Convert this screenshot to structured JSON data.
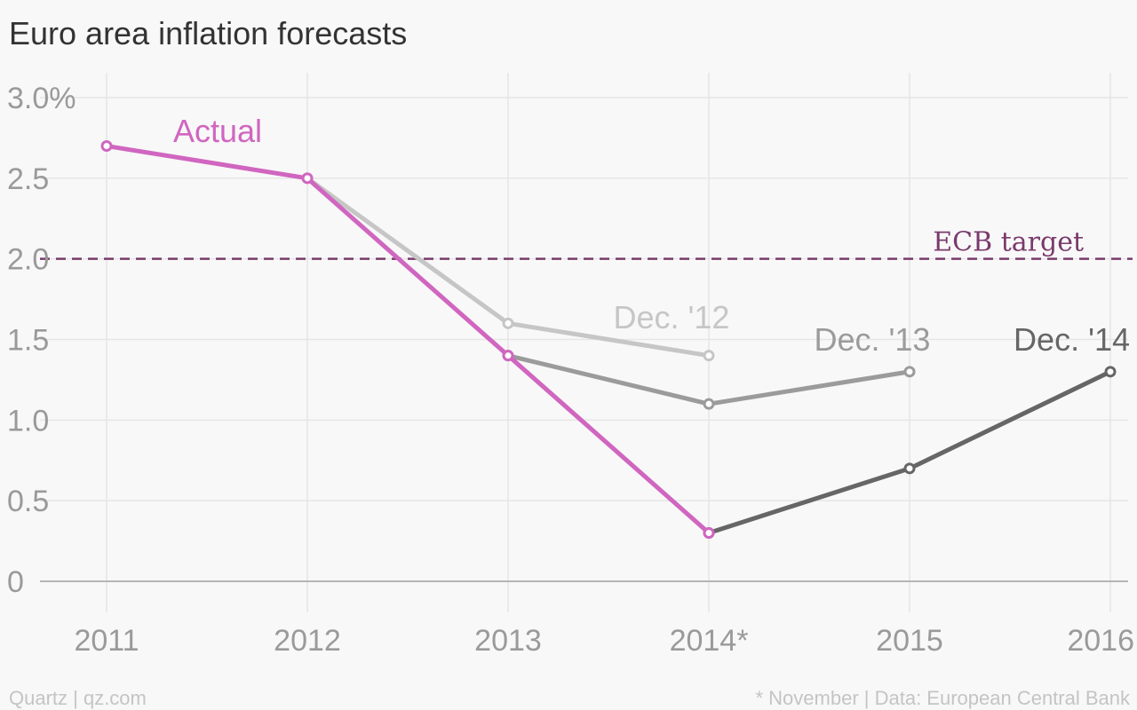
{
  "colors": {
    "background": "#f8f8f8",
    "grid": "#e6e6e6",
    "axis": "#b5b5b5",
    "actual": "#d066c0",
    "dec12": "#c6c6c6",
    "dec13": "#9b9b9b",
    "dec14": "#666666",
    "ecb_target": "#7a3a6c"
  },
  "chart_data": {
    "type": "line",
    "title": "Euro area inflation forecasts",
    "xlabel": "",
    "ylabel": "",
    "x": [
      "2011",
      "2012",
      "2013",
      "2014*",
      "2015",
      "2016"
    ],
    "y_ticks": [
      {
        "value": 0,
        "label": "0"
      },
      {
        "value": 0.5,
        "label": "0.5"
      },
      {
        "value": 1.0,
        "label": "1.0"
      },
      {
        "value": 1.5,
        "label": "1.5"
      },
      {
        "value": 2.0,
        "label": "2.0"
      },
      {
        "value": 2.5,
        "label": "2.5"
      },
      {
        "value": 3.0,
        "label": "3.0%"
      }
    ],
    "ylim": [
      0,
      3.0
    ],
    "grid": true,
    "series": [
      {
        "name": "Dec. '12",
        "color_key": "dec12",
        "x": [
          "2012",
          "2013",
          "2014*"
        ],
        "values": [
          2.5,
          1.6,
          1.4
        ]
      },
      {
        "name": "Dec. '13",
        "color_key": "dec13",
        "x": [
          "2013",
          "2014*",
          "2015"
        ],
        "values": [
          1.4,
          1.1,
          1.3
        ]
      },
      {
        "name": "Dec. '14",
        "color_key": "dec14",
        "x": [
          "2014*",
          "2015",
          "2016"
        ],
        "values": [
          0.3,
          0.7,
          1.3
        ]
      },
      {
        "name": "Actual",
        "color_key": "actual",
        "x": [
          "2011",
          "2012",
          "2013",
          "2014*"
        ],
        "values": [
          2.7,
          2.5,
          1.4,
          0.3
        ]
      }
    ],
    "reference_line": {
      "label": "ECB target",
      "value": 2.0,
      "style": "dashed"
    }
  },
  "footer": {
    "source_left": "Quartz | qz.com",
    "source_right": "* November | Data: European Central Bank"
  }
}
